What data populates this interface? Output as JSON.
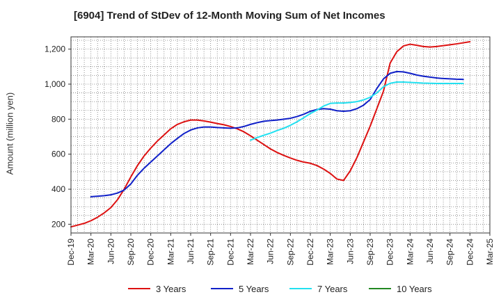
{
  "chart_data": {
    "type": "line",
    "title": "[6904]  Trend of StDev of 12-Month Moving Sum of Net Incomes",
    "xlabel": "",
    "ylabel": "Amount (million yen)",
    "x_tick_labels": [
      "Dec-19",
      "Mar-20",
      "Jun-20",
      "Sep-20",
      "Dec-20",
      "Mar-21",
      "Jun-21",
      "Sep-21",
      "Dec-21",
      "Mar-22",
      "Jun-22",
      "Sep-22",
      "Dec-22",
      "Mar-23",
      "Jun-23",
      "Sep-23",
      "Dec-23",
      "Mar-24",
      "Jun-24",
      "Sep-24",
      "Dec-24",
      "Mar-25"
    ],
    "y_ticks": [
      200,
      400,
      600,
      800,
      1000,
      1200
    ],
    "y_tick_labels": [
      "200",
      "400",
      "600",
      "800",
      "1,000",
      "1,200"
    ],
    "ylim": [
      150,
      1270
    ],
    "grid": true,
    "legend_position": "bottom",
    "months": [
      "2019-12",
      "2020-01",
      "2020-02",
      "2020-03",
      "2020-04",
      "2020-05",
      "2020-06",
      "2020-07",
      "2020-08",
      "2020-09",
      "2020-10",
      "2020-11",
      "2020-12",
      "2021-01",
      "2021-02",
      "2021-03",
      "2021-04",
      "2021-05",
      "2021-06",
      "2021-07",
      "2021-08",
      "2021-09",
      "2021-10",
      "2021-11",
      "2021-12",
      "2022-01",
      "2022-02",
      "2022-03",
      "2022-04",
      "2022-05",
      "2022-06",
      "2022-07",
      "2022-08",
      "2022-09",
      "2022-10",
      "2022-11",
      "2022-12",
      "2023-01",
      "2023-02",
      "2023-03",
      "2023-04",
      "2023-05",
      "2023-06",
      "2023-07",
      "2023-08",
      "2023-09",
      "2023-10",
      "2023-11",
      "2023-12",
      "2024-01",
      "2024-02",
      "2024-03",
      "2024-04",
      "2024-05",
      "2024-06",
      "2024-07",
      "2024-08",
      "2024-09",
      "2024-10",
      "2024-11",
      "2024-12",
      "2025-01",
      "2025-02",
      "2025-03"
    ],
    "series": [
      {
        "name": "3 Years",
        "color": "#dd1111",
        "start": "2019-12",
        "values": [
          185,
          195,
          205,
          220,
          240,
          265,
          295,
          340,
          400,
          470,
          535,
          590,
          635,
          675,
          710,
          745,
          770,
          785,
          795,
          795,
          790,
          783,
          775,
          768,
          758,
          745,
          728,
          705,
          680,
          655,
          630,
          610,
          593,
          578,
          565,
          555,
          548,
          535,
          515,
          490,
          458,
          450,
          505,
          580,
          670,
          760,
          860,
          960,
          1120,
          1185,
          1218,
          1228,
          1222,
          1215,
          1212,
          1215,
          1220,
          1225,
          1230,
          1236,
          1242
        ]
      },
      {
        "name": "5 Years",
        "color": "#1020c8",
        "start": "2020-03",
        "values": [
          357,
          360,
          363,
          368,
          378,
          395,
          430,
          480,
          520,
          555,
          590,
          625,
          660,
          690,
          718,
          738,
          750,
          755,
          755,
          752,
          750,
          748,
          750,
          758,
          770,
          780,
          788,
          792,
          795,
          800,
          805,
          815,
          828,
          845,
          855,
          860,
          857,
          848,
          845,
          848,
          860,
          880,
          912,
          975,
          1030,
          1062,
          1072,
          1070,
          1062,
          1052,
          1045,
          1040,
          1035,
          1032,
          1030,
          1028,
          1027
        ]
      },
      {
        "name": "7 Years",
        "color": "#22e0f0",
        "start": "2022-03",
        "values": [
          680,
          695,
          708,
          720,
          735,
          748,
          765,
          785,
          808,
          832,
          852,
          875,
          890,
          892,
          892,
          895,
          900,
          910,
          925,
          950,
          985,
          1005,
          1012,
          1012,
          1010,
          1008,
          1006,
          1005,
          1004,
          1004,
          1004,
          1004,
          1004
        ]
      },
      {
        "name": "10 Years",
        "color": "#228822",
        "start": "2025-03",
        "values": []
      }
    ]
  }
}
